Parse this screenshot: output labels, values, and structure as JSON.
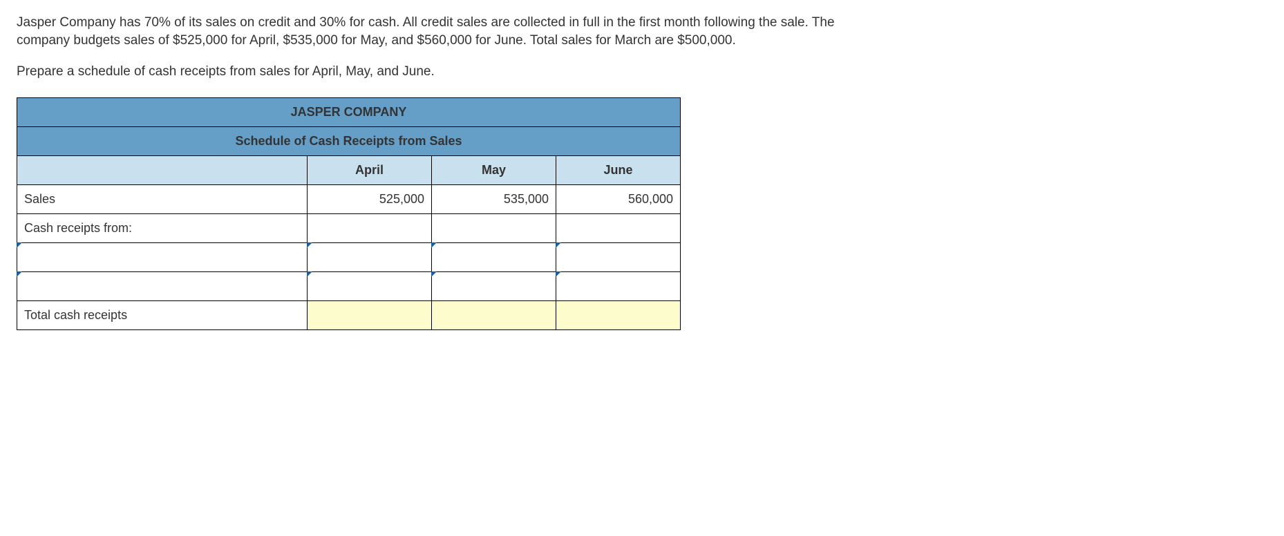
{
  "problem": {
    "para1": "Jasper Company has 70% of its sales on credit and 30% for cash. All credit sales are collected in full in the first month following the sale. The company budgets sales of $525,000 for April, $535,000 for May, and $560,000 for June. Total sales for March are $500,000.",
    "para2": "Prepare a schedule of cash receipts from sales for April, May, and June."
  },
  "table": {
    "title": "JASPER COMPANY",
    "subtitle": "Schedule of Cash Receipts from Sales",
    "months": {
      "m1": "April",
      "m2": "May",
      "m3": "June"
    },
    "rows": {
      "sales": {
        "label": "Sales",
        "m1": "525,000",
        "m2": "535,000",
        "m3": "560,000"
      },
      "receipts_from": {
        "label": "Cash receipts from:"
      },
      "input1": {
        "label": "",
        "m1": "",
        "m2": "",
        "m3": ""
      },
      "input2": {
        "label": "",
        "m1": "",
        "m2": "",
        "m3": ""
      },
      "total": {
        "label": "Total cash receipts",
        "m1": "",
        "m2": "",
        "m3": ""
      }
    }
  },
  "colors": {
    "header_bg": "#659ec7",
    "subheader_bg": "#c9e0ef",
    "total_bg": "#fdfccc",
    "corner_marker": "#1a5fa0",
    "border": "#000000",
    "text": "#333333"
  }
}
